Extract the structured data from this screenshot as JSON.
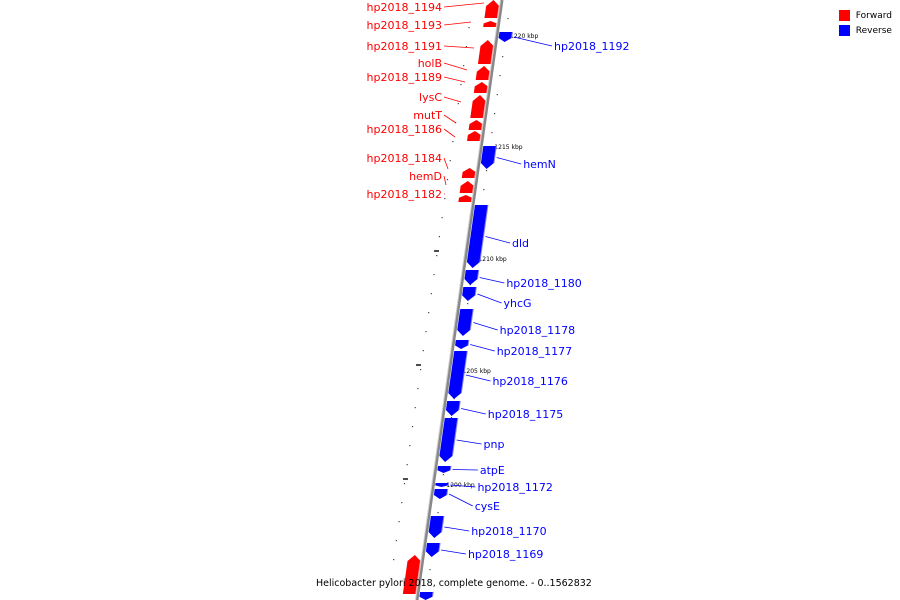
{
  "caption": "Helicobacter pylori 2018, complete genome. - 0..1562832",
  "legend": [
    {
      "label": "Forward",
      "color": "#ff0000"
    },
    {
      "label": "Reverse",
      "color": "#0000ff"
    }
  ],
  "colors": {
    "forward": "#ff0000",
    "reverse": "#0000ff",
    "backbone": "#888888"
  },
  "kbp_markers": [
    "1220 kbp",
    "1215 kbp",
    "1210 kbp",
    "1205 kbp",
    "1200 kbp"
  ],
  "forward_genes": [
    "hp2018_1194",
    "hp2018_1193",
    "hp2018_1191",
    "holB",
    "hp2018_1189",
    "lysC",
    "mutT",
    "hp2018_1186",
    "hp2018_1184",
    "hemD",
    "hp2018_1182"
  ],
  "reverse_genes": [
    "hp2018_1192",
    "hemN",
    "dld",
    "hp2018_1180",
    "yhcG",
    "hp2018_1178",
    "hp2018_1177",
    "hp2018_1176",
    "hp2018_1175",
    "pnp",
    "atpE",
    "hp2018_1172",
    "cysE",
    "hp2018_1170",
    "hp2018_1169"
  ]
}
